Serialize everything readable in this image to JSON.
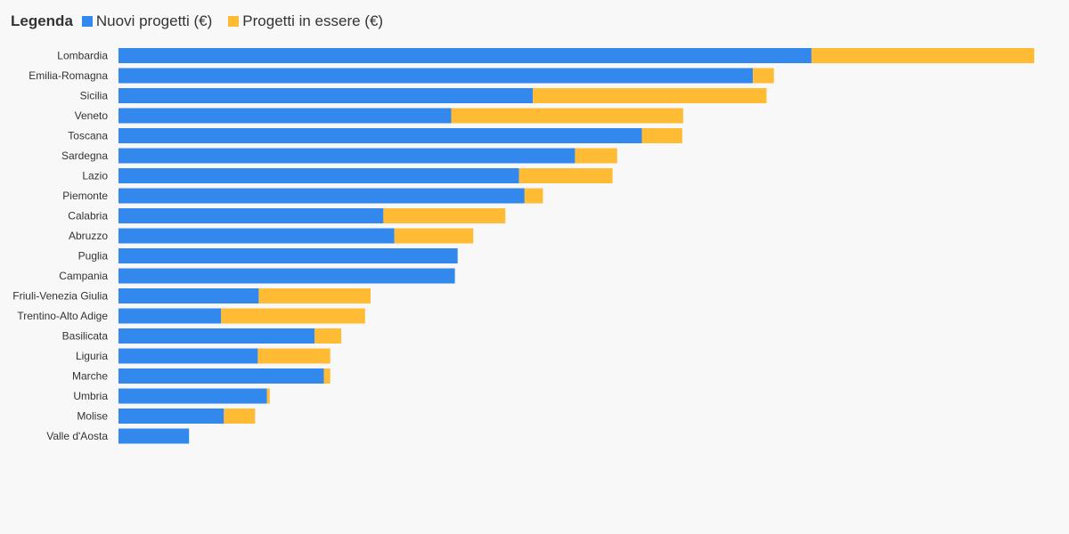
{
  "legend": {
    "title": "Legenda",
    "items": [
      {
        "label": "Nuovi progetti (€)",
        "color": "#3388ee"
      },
      {
        "label": "Progetti in essere (€)",
        "color": "#ffbb33"
      }
    ]
  },
  "chart_data": {
    "type": "bar",
    "orientation": "horizontal",
    "stacked": true,
    "title": "",
    "xlabel": "",
    "ylabel": "",
    "xlim": [
      0,
      1000
    ],
    "categories": [
      "Lombardia",
      "Emilia-Romagna",
      "Sicilia",
      "Veneto",
      "Toscana",
      "Sardegna",
      "Lazio",
      "Piemonte",
      "Calabria",
      "Abruzzo",
      "Puglia",
      "Campania",
      "Friuli-Venezia Giulia",
      "Trentino-Alto Adige",
      "Basilicata",
      "Liguria",
      "Marche",
      "Umbria",
      "Molise",
      "Valle d'Aosta"
    ],
    "series": [
      {
        "name": "Nuovi progetti (€)",
        "color": "#3388ee",
        "values": [
          756,
          692,
          452,
          363,
          571,
          498,
          437,
          443,
          289,
          301,
          370,
          367,
          153,
          112,
          214,
          152,
          224,
          162,
          115,
          77
        ]
      },
      {
        "name": "Progetti in essere (€)",
        "color": "#ffbb33",
        "values": [
          243,
          23,
          255,
          253,
          44,
          46,
          102,
          20,
          133,
          86,
          0,
          0,
          122,
          157,
          29,
          79,
          7,
          3,
          34,
          0
        ]
      }
    ]
  }
}
